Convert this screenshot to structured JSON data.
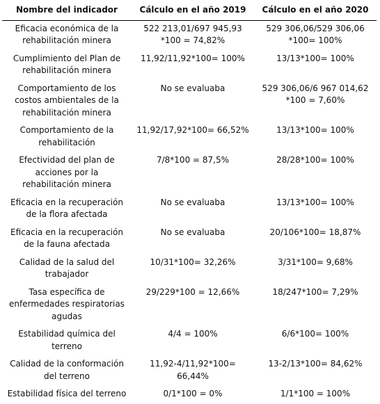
{
  "table": {
    "headers": [
      "Nombre del indicador",
      "Cálculo en el año 2019",
      "Cálculo en el año 2020"
    ],
    "rows": [
      [
        "Eficacia económica de la\nrehabilitación minera",
        "522 213,01/697 945,93\n*100 = 74,82%",
        "529 306,06/529 306,06\n*100= 100%"
      ],
      [
        "Cumplimiento del Plan de\nrehabilitación minera",
        "11,92/11,92*100= 100%",
        "13/13*100= 100%"
      ],
      [
        "Comportamiento de los\ncostos ambientales de la\nrehabilitación minera",
        "No se evaluaba",
        "529 306,06/6 967 014,62\n*100 = 7,60%"
      ],
      [
        "Comportamiento de la\nrehabilitación",
        "11,92/17,92*100= 66,52%",
        "13/13*100= 100%"
      ],
      [
        "Efectividad del plan de\nacciones por la\nrehabilitación minera",
        "7/8*100 = 87,5%",
        "28/28*100= 100%"
      ],
      [
        "Eficacia en la recuperación\nde la flora afectada",
        "No se evaluaba",
        "13/13*100= 100%"
      ],
      [
        "Eficacia en la recuperación\nde la fauna afectada",
        "No se evaluaba",
        "20/106*100= 18,87%"
      ],
      [
        "Calidad de la salud del\ntrabajador",
        "10/31*100= 32,26%",
        "3/31*100= 9,68%"
      ],
      [
        "Tasa específica de\nenfermedades respiratorias\nagudas",
        "29/229*100 = 12,66%",
        "18/247*100= 7,29%"
      ],
      [
        "Estabilidad química del\nterreno",
        "4/4 = 100%",
        "6/6*100= 100%"
      ],
      [
        "Calidad de la conformación\ndel terreno",
        "11,92-4/11,92*100=\n66,44%",
        "13-2/13*100= 84,62%"
      ],
      [
        "Estabilidad física del terreno",
        "0/1*100 = 0%",
        "1/1*100 = 100%"
      ]
    ]
  }
}
